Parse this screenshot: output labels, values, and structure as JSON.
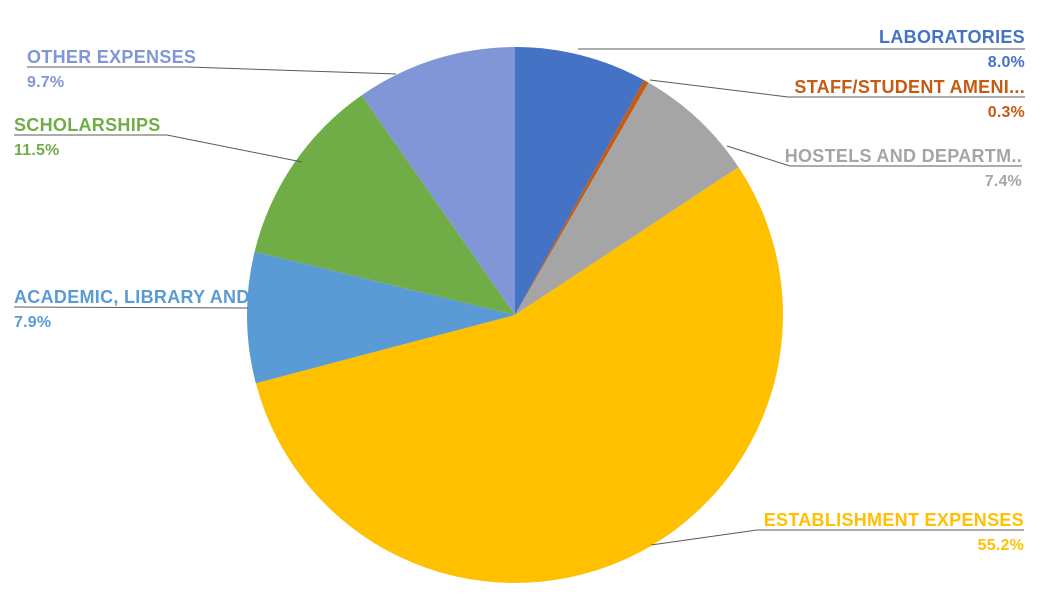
{
  "chart_data": {
    "type": "pie",
    "title": "",
    "direction": "clockwise",
    "start_angle": 0,
    "legend_position": "none",
    "labels_style": "callout-leader-lines",
    "background_color": "#FFFFFF",
    "leader_line_color": "#595959",
    "total": 100,
    "slices": [
      {
        "label": "LABORATORIES",
        "value": 8.0,
        "pct_label": "8.0%",
        "color": "#4472C4"
      },
      {
        "label": "STAFF/STUDENT AMENI...",
        "value": 0.3,
        "pct_label": "0.3%",
        "color": "#C55A11"
      },
      {
        "label": "HOSTELS AND DEPARTM..",
        "value": 7.4,
        "pct_label": "7.4%",
        "color": "#A5A5A5"
      },
      {
        "label": "ESTABLISHMENT EXPENSES",
        "value": 55.2,
        "pct_label": "55.2%",
        "color": "#FFC000"
      },
      {
        "label": "ACADEMIC, LIBRARY AND...",
        "value": 7.9,
        "pct_label": "7.9%",
        "color": "#5B9BD5"
      },
      {
        "label": "SCHOLARSHIPS",
        "value": 11.5,
        "pct_label": "11.5%",
        "color": "#70AD47"
      },
      {
        "label": "OTHER EXPENSES",
        "value": 9.7,
        "pct_label": "9.7%",
        "color": "#8096D6"
      }
    ]
  }
}
